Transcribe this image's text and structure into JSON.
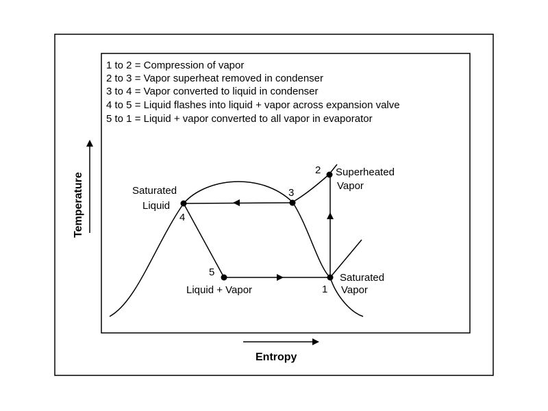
{
  "legend": [
    "1 to 2 = Compression of vapor",
    "2 to 3 = Vapor superheat removed in condenser",
    "3 to 4 = Vapor converted to liquid in condenser",
    "4 to 5 = Liquid flashes into liquid + vapor across expansion valve",
    "5 to 1 = Liquid + vapor converted to all vapor in evaporator"
  ],
  "axes": {
    "x_label": "Entropy",
    "y_label": "Temperature"
  },
  "points": {
    "p1": "1",
    "p2": "2",
    "p3": "3",
    "p4": "4",
    "p5": "5"
  },
  "labels": {
    "saturated_liquid_1": "Saturated",
    "saturated_liquid_2": "Liquid",
    "superheated_vapor_1": "Superheated",
    "superheated_vapor_2": "Vapor",
    "saturated_vapor_1": "Saturated",
    "saturated_vapor_2": "Vapor",
    "liquid_vapor": "Liquid + Vapor"
  }
}
